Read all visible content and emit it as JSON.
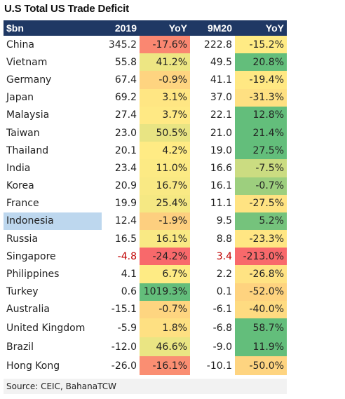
{
  "chart_data": {
    "type": "table",
    "title": "U.S Total US Trade Deficit",
    "columns": [
      "$bn",
      "2019",
      "YoY",
      "9M20",
      "YoY"
    ],
    "rows": [
      {
        "country": "China",
        "v2019": "345.2",
        "yoy2019": "-17.6%",
        "v9m20": "222.8",
        "yoy9m20": "-15.2%"
      },
      {
        "country": "Vietnam",
        "v2019": "55.8",
        "yoy2019": "41.2%",
        "v9m20": "49.5",
        "yoy9m20": "20.8%"
      },
      {
        "country": "Germany",
        "v2019": "67.4",
        "yoy2019": "-0.9%",
        "v9m20": "41.1",
        "yoy9m20": "-19.4%"
      },
      {
        "country": "Japan",
        "v2019": "69.2",
        "yoy2019": "3.1%",
        "v9m20": "37.0",
        "yoy9m20": "-31.3%"
      },
      {
        "country": "Malaysia",
        "v2019": "27.4",
        "yoy2019": "3.7%",
        "v9m20": "22.1",
        "yoy9m20": "12.8%"
      },
      {
        "country": "Taiwan",
        "v2019": "23.0",
        "yoy2019": "50.5%",
        "v9m20": "21.0",
        "yoy9m20": "21.4%"
      },
      {
        "country": "Thailand",
        "v2019": "20.1",
        "yoy2019": "4.2%",
        "v9m20": "19.0",
        "yoy9m20": "27.5%"
      },
      {
        "country": "India",
        "v2019": "23.4",
        "yoy2019": "11.0%",
        "v9m20": "16.6",
        "yoy9m20": "-7.5%"
      },
      {
        "country": "Korea",
        "v2019": "20.9",
        "yoy2019": "16.7%",
        "v9m20": "16.1",
        "yoy9m20": "-0.7%"
      },
      {
        "country": "France",
        "v2019": "19.9",
        "yoy2019": "25.4%",
        "v9m20": "11.1",
        "yoy9m20": "-27.5%"
      },
      {
        "country": "Indonesia",
        "v2019": "12.4",
        "yoy2019": "-1.9%",
        "v9m20": "9.5",
        "yoy9m20": "5.2%"
      },
      {
        "country": "Russia",
        "v2019": "16.5",
        "yoy2019": "16.1%",
        "v9m20": "8.8",
        "yoy9m20": "-23.3%"
      },
      {
        "country": "Singapore",
        "v2019": "-4.8",
        "yoy2019": "-24.2%",
        "v9m20": "3.4",
        "yoy9m20": "-213.0%"
      },
      {
        "country": "Philippines",
        "v2019": "4.1",
        "yoy2019": "6.7%",
        "v9m20": "2.2",
        "yoy9m20": "-26.8%"
      },
      {
        "country": "Turkey",
        "v2019": "0.6",
        "yoy2019": "1019.3%",
        "v9m20": "0.1",
        "yoy9m20": "-52.0%"
      },
      {
        "country": "Australia",
        "v2019": "-15.1",
        "yoy2019": "-0.7%",
        "v9m20": "-6.1",
        "yoy9m20": "-40.0%"
      },
      {
        "country": "United Kingdom",
        "v2019": "-5.9",
        "yoy2019": "1.8%",
        "v9m20": "-6.8",
        "yoy9m20": "58.7%"
      },
      {
        "country": "Brazil",
        "v2019": "-12.0",
        "yoy2019": "46.6%",
        "v9m20": "-9.0",
        "yoy9m20": "11.9%"
      },
      {
        "country": "Hong Kong",
        "v2019": "-26.0",
        "yoy2019": "-16.1%",
        "v9m20": "-10.1",
        "yoy9m20": "-50.0%"
      }
    ],
    "highlighted_row": "Indonesia",
    "colors": {
      "header_bg": "#1f3864",
      "header_text": "#ffffff",
      "highlight": "#bdd7ee",
      "negative_text": "#c00000",
      "scale_low": "#f8696b",
      "scale_mid": "#ffeb84",
      "scale_high": "#63be7b"
    },
    "source": "Source: CEIC, BahanaTCW"
  }
}
